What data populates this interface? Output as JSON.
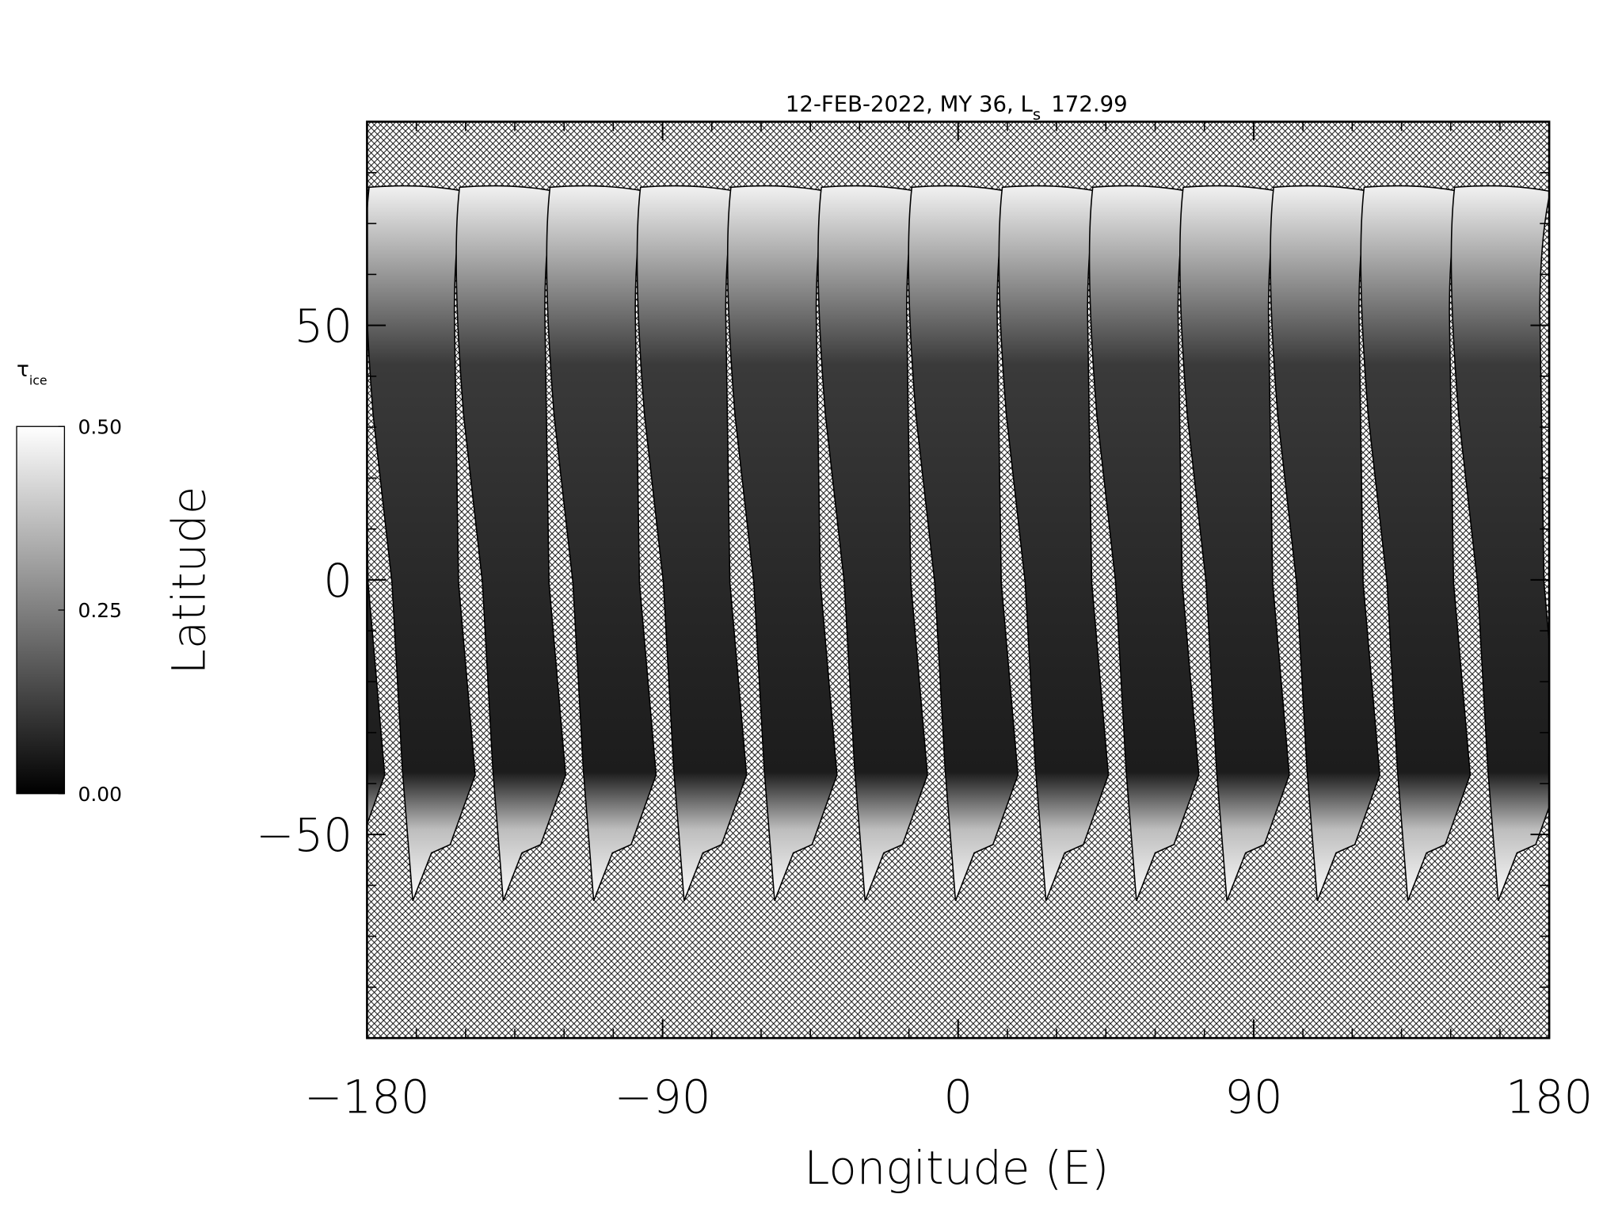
{
  "chart_data": {
    "type": "map",
    "title": "12-FEB-2022, MY 36,  L",
    "title_subscript": "s",
    "title_suffix": "172.99",
    "xlabel": "Longitude (E)",
    "ylabel": "Latitude",
    "xlim": [
      -180,
      180
    ],
    "ylim": [
      -90,
      90
    ],
    "xticks": [
      {
        "value": -180,
        "label": "−180"
      },
      {
        "value": -90,
        "label": "−90"
      },
      0,
      90,
      180
    ],
    "yticks": [
      {
        "value": -50,
        "label": "−50"
      },
      0,
      50
    ],
    "xminorticks": [
      -165,
      -150,
      -135,
      -120,
      -105,
      -75,
      -60,
      -45,
      -30,
      -15,
      15,
      30,
      45,
      60,
      75,
      105,
      120,
      135,
      150,
      165
    ],
    "yminorticks": [
      -80,
      -70,
      -60,
      -40,
      -30,
      -20,
      -10,
      10,
      20,
      30,
      40,
      60,
      70,
      80
    ],
    "colorbar": {
      "label": "τ",
      "label_subscript": "ice",
      "lim": [
        0,
        0.5
      ],
      "ticks": [
        {
          "value": 0,
          "label": "0.00"
        },
        {
          "value": 0.25,
          "label": "0.25"
        },
        {
          "value": 0.5,
          "label": "0.50"
        }
      ],
      "colors": [
        "#000000",
        "#ffffff"
      ]
    }
  }
}
